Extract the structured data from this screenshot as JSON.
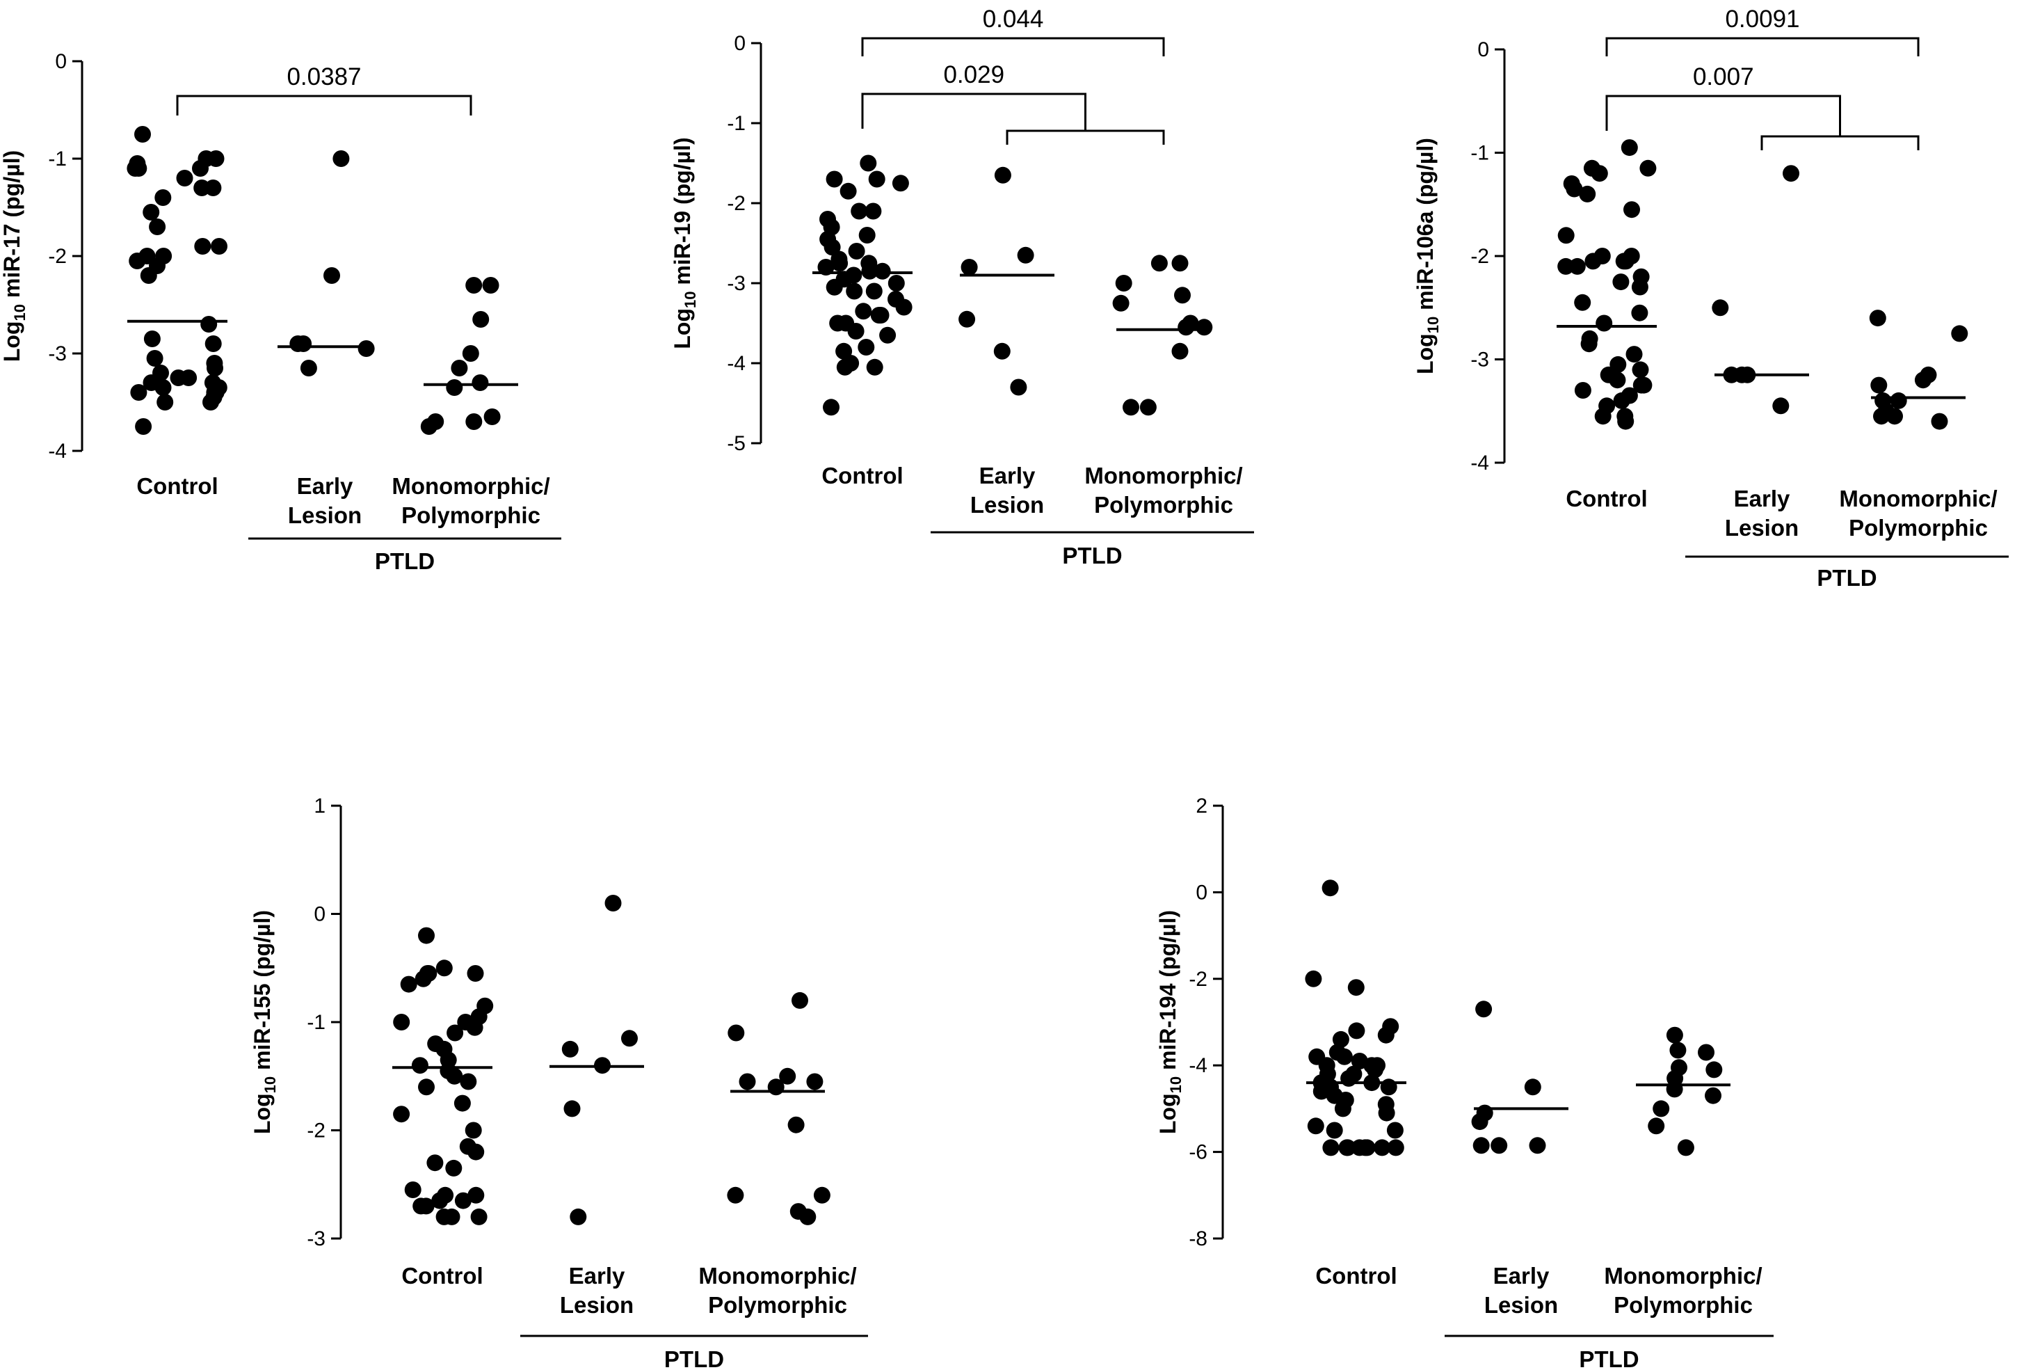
{
  "chart_data": [
    {
      "type": "scatter",
      "ylabel": {
        "prefix": "Log",
        "subscript": "10",
        "suffix": " miR-17 (pg/µl)"
      },
      "ylim": [
        -4,
        0
      ],
      "yticks": [
        0,
        -1,
        -2,
        -3,
        -4
      ],
      "yticklabels": [
        "0",
        "-1",
        "-2",
        "-3",
        "-4"
      ],
      "categories": [
        {
          "lines": [
            "Control"
          ]
        },
        {
          "lines": [
            "Early",
            "Lesion"
          ]
        },
        {
          "lines": [
            "Monomorphic/",
            "Polymorphic"
          ]
        }
      ],
      "group_label": "PTLD",
      "group_span": [
        1,
        2
      ],
      "points": [
        [
          -0.75,
          -1.0,
          -1.0,
          -1.05,
          -1.1,
          -1.1,
          -1.1,
          -1.2,
          -1.3,
          -1.3,
          -1.4,
          -1.55,
          -1.7,
          -1.9,
          -1.9,
          -2.0,
          -2.0,
          -2.05,
          -2.1,
          -2.2,
          -2.7,
          -2.85,
          -2.9,
          -3.05,
          -3.1,
          -3.15,
          -3.2,
          -3.25,
          -3.25,
          -3.3,
          -3.3,
          -3.35,
          -3.35,
          -3.4,
          -3.4,
          -3.4,
          -3.45,
          -3.5,
          -3.5,
          -3.75
        ],
        [
          -1.0,
          -2.2,
          -2.9,
          -2.9,
          -2.95,
          -3.15
        ],
        [
          -2.3,
          -2.3,
          -2.65,
          -3.0,
          -3.15,
          -3.3,
          -3.35,
          -3.65,
          -3.7,
          -3.7,
          -3.75
        ]
      ],
      "medians": [
        -2.67,
        -2.93,
        -3.32
      ],
      "comparisons": [
        {
          "label": "0.0387",
          "from": 0,
          "to": 2
        }
      ]
    },
    {
      "type": "scatter",
      "ylabel": {
        "prefix": "Log",
        "subscript": "10",
        "suffix": " miR-19 (pg/µl)"
      },
      "ylim": [
        -5,
        0
      ],
      "yticks": [
        0,
        -1,
        -2,
        -3,
        -4,
        -5
      ],
      "yticklabels": [
        "0",
        "-1",
        "-2",
        "-3",
        "-4",
        "-5"
      ],
      "categories": [
        {
          "lines": [
            "Control"
          ]
        },
        {
          "lines": [
            "Early",
            "Lesion"
          ]
        },
        {
          "lines": [
            "Monomorphic/",
            "Polymorphic"
          ]
        }
      ],
      "group_label": "PTLD",
      "group_span": [
        1,
        2
      ],
      "points": [
        [
          -1.5,
          -1.7,
          -1.7,
          -1.75,
          -1.85,
          -2.1,
          -2.1,
          -2.2,
          -2.3,
          -2.4,
          -2.45,
          -2.55,
          -2.6,
          -2.7,
          -2.75,
          -2.75,
          -2.8,
          -2.85,
          -2.85,
          -2.9,
          -2.95,
          -3.0,
          -3.05,
          -3.1,
          -3.1,
          -3.2,
          -3.3,
          -3.35,
          -3.4,
          -3.4,
          -3.5,
          -3.5,
          -3.6,
          -3.65,
          -3.8,
          -3.85,
          -4.0,
          -4.05,
          -4.05,
          -4.55
        ],
        [
          -1.65,
          -2.65,
          -2.8,
          -3.45,
          -3.85,
          -4.3
        ],
        [
          -2.75,
          -2.75,
          -3.0,
          -3.15,
          -3.25,
          -3.5,
          -3.55,
          -3.55,
          -3.85,
          -4.55,
          -4.55
        ]
      ],
      "medians": [
        -2.87,
        -2.9,
        -3.58
      ],
      "comparisons": [
        {
          "label": "0.044",
          "from": 0,
          "to": 2
        },
        {
          "label": "0.029",
          "from": 0,
          "to": "group"
        }
      ]
    },
    {
      "type": "scatter",
      "ylabel": {
        "prefix": "Log",
        "subscript": "10",
        "suffix": " miR-106a (pg/µl)"
      },
      "ylim": [
        -4,
        0
      ],
      "yticks": [
        0,
        -1,
        -2,
        -3,
        -4
      ],
      "yticklabels": [
        "0",
        "-1",
        "-2",
        "-3",
        "-4"
      ],
      "categories": [
        {
          "lines": [
            "Control"
          ]
        },
        {
          "lines": [
            "Early",
            "Lesion"
          ]
        },
        {
          "lines": [
            "Monomorphic/",
            "Polymorphic"
          ]
        }
      ],
      "group_label": "PTLD",
      "group_span": [
        1,
        2
      ],
      "points": [
        [
          -0.95,
          -1.15,
          -1.15,
          -1.2,
          -1.3,
          -1.35,
          -1.4,
          -1.55,
          -1.8,
          -2.0,
          -2.0,
          -2.05,
          -2.05,
          -2.05,
          -2.1,
          -2.1,
          -2.2,
          -2.25,
          -2.3,
          -2.45,
          -2.55,
          -2.65,
          -2.8,
          -2.85,
          -2.95,
          -3.05,
          -3.1,
          -3.15,
          -3.2,
          -3.25,
          -3.25,
          -3.3,
          -3.35,
          -3.4,
          -3.45,
          -3.55,
          -3.55,
          -3.6
        ],
        [
          -1.2,
          -2.5,
          -3.15,
          -3.15,
          -3.15,
          -3.45
        ],
        [
          -2.6,
          -2.75,
          -3.15,
          -3.2,
          -3.25,
          -3.4,
          -3.4,
          -3.5,
          -3.55,
          -3.55,
          -3.6
        ]
      ],
      "medians": [
        -2.68,
        -3.15,
        -3.37
      ],
      "comparisons": [
        {
          "label": "0.0091",
          "from": 0,
          "to": 2
        },
        {
          "label": "0.007",
          "from": 0,
          "to": "group"
        }
      ]
    },
    {
      "type": "scatter",
      "ylabel": {
        "prefix": "Log",
        "subscript": "10",
        "suffix": " miR-155 (pg/µl)"
      },
      "ylim": [
        -3,
        1
      ],
      "yticks": [
        1,
        0,
        -1,
        -2,
        -3
      ],
      "yticklabels": [
        "1",
        "0",
        "-1",
        "-2",
        "-3"
      ],
      "categories": [
        {
          "lines": [
            "Control"
          ]
        },
        {
          "lines": [
            "Early",
            "Lesion"
          ]
        },
        {
          "lines": [
            "Monomorphic/",
            "Polymorphic"
          ]
        }
      ],
      "group_label": "PTLD",
      "group_span": [
        1,
        2
      ],
      "points": [
        [
          -0.2,
          -0.5,
          -0.55,
          -0.55,
          -0.55,
          -0.6,
          -0.65,
          -0.85,
          -0.95,
          -1.0,
          -1.0,
          -1.05,
          -1.1,
          -1.2,
          -1.25,
          -1.35,
          -1.4,
          -1.45,
          -1.5,
          -1.55,
          -1.6,
          -1.75,
          -1.85,
          -2.0,
          -2.15,
          -2.2,
          -2.3,
          -2.35,
          -2.55,
          -2.6,
          -2.6,
          -2.65,
          -2.65,
          -2.7,
          -2.7,
          -2.8,
          -2.8,
          -2.8
        ],
        [
          0.1,
          -1.15,
          -1.25,
          -1.4,
          -1.8,
          -2.8
        ],
        [
          -0.8,
          -1.1,
          -1.5,
          -1.55,
          -1.55,
          -1.6,
          -1.95,
          -2.6,
          -2.6,
          -2.75,
          -2.8
        ]
      ],
      "medians": [
        -1.42,
        -1.41,
        -1.64
      ],
      "comparisons": []
    },
    {
      "type": "scatter",
      "ylabel": {
        "prefix": "Log",
        "subscript": "10",
        "suffix": " miR-194 (pg/µl)"
      },
      "ylim": [
        -8,
        2
      ],
      "yticks": [
        2,
        0,
        -2,
        -4,
        -6,
        -8
      ],
      "yticklabels": [
        "2",
        "0",
        "-2",
        "-4",
        "-6",
        "-8"
      ],
      "categories": [
        {
          "lines": [
            "Control"
          ]
        },
        {
          "lines": [
            "Early",
            "Lesion"
          ]
        },
        {
          "lines": [
            "Monomorphic/",
            "Polymorphic"
          ]
        }
      ],
      "group_label": "PTLD",
      "group_span": [
        1,
        2
      ],
      "points": [
        [
          0.1,
          -2.0,
          -2.2,
          -3.1,
          -3.2,
          -3.3,
          -3.4,
          -3.7,
          -3.8,
          -3.8,
          -3.9,
          -4.0,
          -4.0,
          -4.0,
          -4.1,
          -4.2,
          -4.2,
          -4.3,
          -4.4,
          -4.4,
          -4.5,
          -4.5,
          -4.6,
          -4.7,
          -4.8,
          -4.9,
          -5.0,
          -5.1,
          -5.4,
          -5.5,
          -5.5,
          -5.9,
          -5.9,
          -5.9,
          -5.9,
          -5.9,
          -5.9,
          -5.9,
          -5.9
        ],
        [
          -2.7,
          -4.5,
          -5.1,
          -5.3,
          -5.85,
          -5.85,
          -5.85
        ],
        [
          -3.3,
          -3.65,
          -3.7,
          -4.05,
          -4.1,
          -4.3,
          -4.55,
          -4.7,
          -5.0,
          -5.4,
          -5.9
        ]
      ],
      "medians": [
        -4.4,
        -5.0,
        -4.45
      ],
      "comparisons": []
    }
  ]
}
